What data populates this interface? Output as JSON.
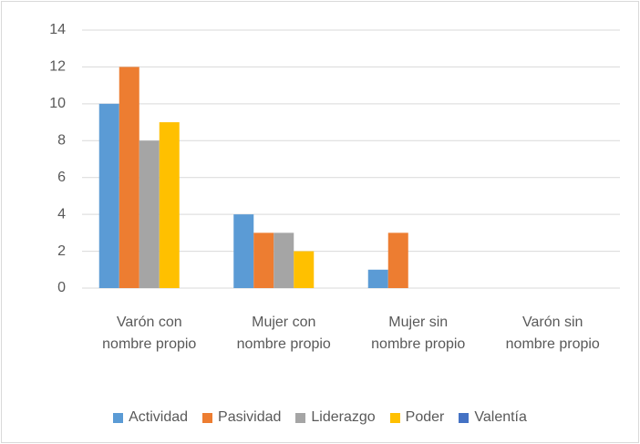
{
  "chart_data": {
    "type": "bar",
    "categories": [
      "Varón con nombre propio",
      "Mujer con nombre propio",
      "Mujer sin nombre propio",
      "Varón sin nombre propio"
    ],
    "series": [
      {
        "name": "Actividad",
        "color": "#5b9bd5",
        "values": [
          10,
          4,
          1,
          0
        ]
      },
      {
        "name": "Pasividad",
        "color": "#ed7d31",
        "values": [
          12,
          3,
          3,
          0
        ]
      },
      {
        "name": "Liderazgo",
        "color": "#a5a5a5",
        "values": [
          8,
          3,
          0,
          0
        ]
      },
      {
        "name": "Poder",
        "color": "#ffc000",
        "values": [
          9,
          2,
          0,
          0
        ]
      },
      {
        "name": "Valentía",
        "color": "#4472c4",
        "values": [
          0,
          0,
          0,
          0
        ]
      }
    ],
    "ylim": [
      0,
      14
    ],
    "yticks": [
      0,
      2,
      4,
      6,
      8,
      10,
      12,
      14
    ],
    "grid": true,
    "legend": "bottom"
  }
}
